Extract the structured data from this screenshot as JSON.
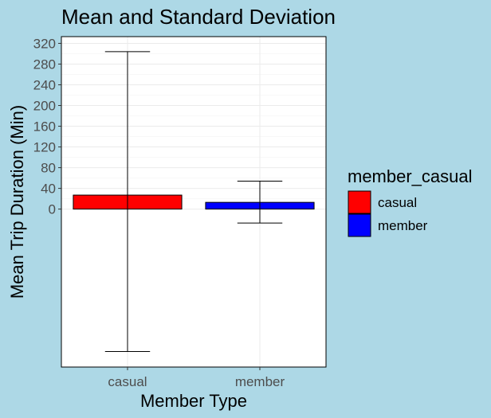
{
  "chart_data": {
    "type": "bar",
    "title": "Mean and Standard Deviation",
    "xlabel": "Member Type",
    "ylabel": "Mean Trip Duration (Min)",
    "categories": [
      "casual",
      "member"
    ],
    "values": [
      27,
      13
    ],
    "error_bars": [
      {
        "category": "casual",
        "ymin": -275,
        "ymax": 304
      },
      {
        "category": "member",
        "ymin": -27,
        "ymax": 54
      }
    ],
    "ylim": [
      -305,
      333
    ],
    "yticks": [
      0,
      40,
      80,
      120,
      160,
      200,
      240,
      280,
      320
    ],
    "grid": true,
    "legend": {
      "title": "member_casual",
      "position": "right",
      "entries": [
        {
          "label": "casual",
          "color": "#ff0000"
        },
        {
          "label": "member",
          "color": "#0000ff"
        }
      ]
    },
    "colors": {
      "background": "#add8e6",
      "panel": "#ffffff",
      "casual": "#ff0000",
      "member": "#0000ff"
    }
  }
}
